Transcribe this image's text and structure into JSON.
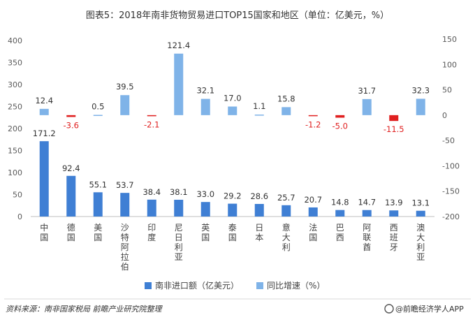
{
  "title": "图表5：2018年南非货物贸易进口TOP15国家和地区（单位：亿美元，%）",
  "footer": {
    "source": "资料来源：南非国家税局 前瞻产业研究院整理",
    "brand": "@前瞻经济学人APP"
  },
  "colors": {
    "amount_bar": "#3f7fd4",
    "growth_bar_pos": "#7fb3e8",
    "growth_bar_neg": "#e02020",
    "growth_label_neg": "#e02020",
    "text": "#404040"
  },
  "chart_data": {
    "type": "bar",
    "categories": [
      "中国",
      "德国",
      "美国",
      "沙特阿拉伯",
      "印度",
      "尼日利亚",
      "英国",
      "泰国",
      "日本",
      "意大利",
      "法国",
      "巴西",
      "阿联酋",
      "西班牙",
      "澳大利亚"
    ],
    "series": [
      {
        "name": "南非进口额（亿美元）",
        "axis": "left",
        "values": [
          171.2,
          92.4,
          55.1,
          53.7,
          38.4,
          38.1,
          33.0,
          29.2,
          28.6,
          25.7,
          20.7,
          14.8,
          14.7,
          13.9,
          13.1
        ],
        "labels": [
          "171.2",
          "92.4",
          "55.1",
          "53.7",
          "38.4",
          "38.1",
          "33.0",
          "29.2",
          "28.6",
          "25.7",
          "20.7",
          "14.8",
          "14.7",
          "13.9",
          "13.1"
        ]
      },
      {
        "name": "同比增速（%）",
        "axis": "right",
        "values": [
          12.4,
          -3.6,
          0.5,
          39.5,
          -2.1,
          121.4,
          32.1,
          17.0,
          1.1,
          15.8,
          -1.2,
          -5.0,
          31.7,
          -11.5,
          32.3
        ],
        "labels": [
          "12.4",
          "-3.6",
          "0.5",
          "39.5",
          "-2.1",
          "121.4",
          "32.1",
          "17.0",
          "1.1",
          "15.8",
          "-1.2",
          "-5.0",
          "31.7",
          "-11.5",
          "32.3"
        ]
      }
    ],
    "y_left": {
      "min": 0,
      "max": 400,
      "ticks": [
        "0",
        "50",
        "100",
        "150",
        "200",
        "250",
        "300",
        "350",
        "400"
      ]
    },
    "y_right": {
      "min": -200,
      "max": 150,
      "ticks": [
        "-200",
        "-150",
        "-100",
        "-50",
        "0",
        "50",
        "100",
        "150"
      ]
    },
    "grid": false,
    "legend_position": "bottom"
  }
}
